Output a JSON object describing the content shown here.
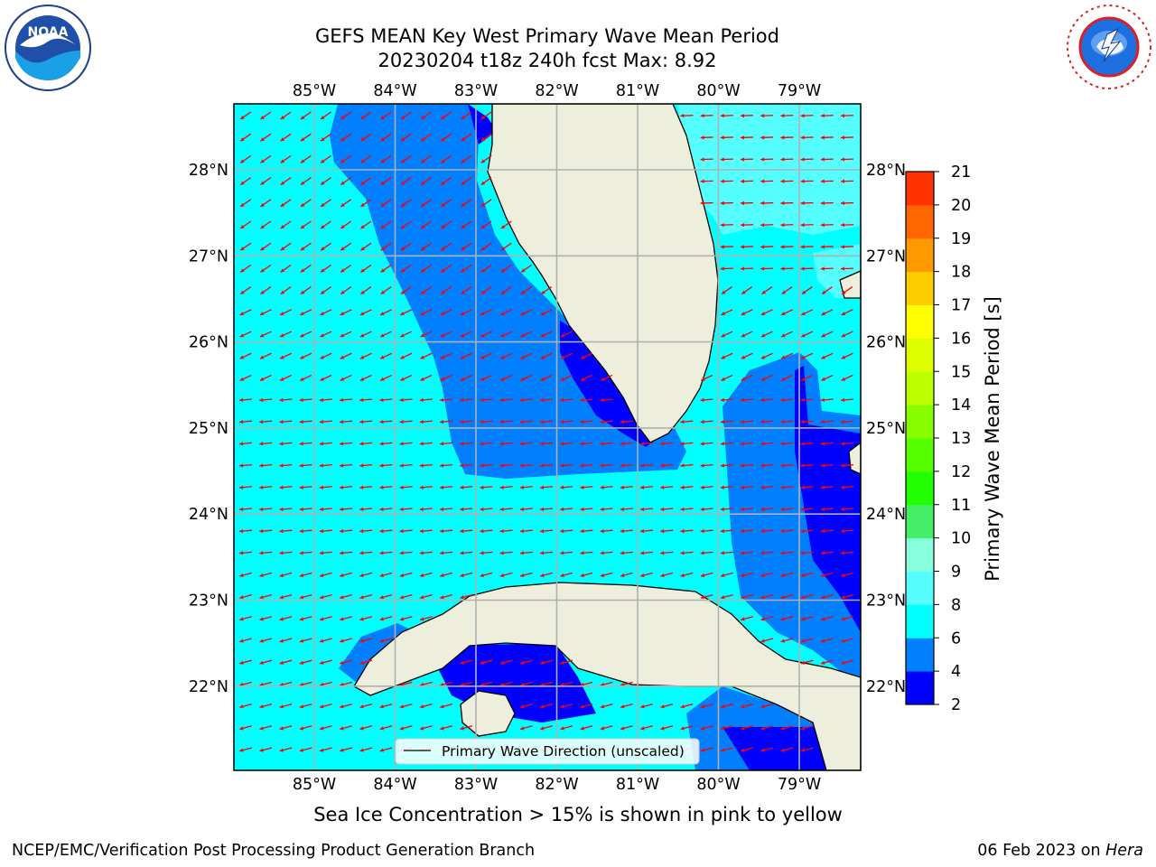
{
  "header": {
    "title_line1": "GEFS MEAN Key West Primary Wave Mean Period",
    "title_line2": "20230204 t18z 240h fcst   Max: 8.92"
  },
  "logos": {
    "left": {
      "name": "NOAA",
      "text": "NOAA"
    },
    "right": {
      "name": "NATIONAL WEATHER SERVICE"
    }
  },
  "map": {
    "lon_labels": [
      "85°W",
      "84°W",
      "83°W",
      "82°W",
      "81°W",
      "80°W",
      "79°W"
    ],
    "lat_labels": [
      "28°N",
      "27°N",
      "26°N",
      "25°N",
      "24°N",
      "23°N",
      "22°N"
    ],
    "legend_label": "Primary Wave Direction (unscaled)",
    "colors": {
      "ocean_base": "#00ffff",
      "band_6_8": "#00f4ff",
      "band_4_6": "#007fff",
      "band_2_4": "#0000ff",
      "band_8_9": "#55ffff",
      "land": "#eeeedd",
      "arrow": "#ff0000",
      "grid": "#b0b0b0"
    }
  },
  "colorbar": {
    "label": "Primary Wave Mean Period [s]",
    "ticks": [
      "2",
      "4",
      "6",
      "8",
      "9",
      "10",
      "11",
      "12",
      "13",
      "14",
      "15",
      "16",
      "17",
      "18",
      "19",
      "20",
      "21"
    ],
    "colors": [
      "#0000ff",
      "#007fff",
      "#00ffff",
      "#55ffff",
      "#88ffdd",
      "#44ee66",
      "#22ff00",
      "#55ff00",
      "#88ff00",
      "#bbff00",
      "#ddff00",
      "#ffff00",
      "#ffcc00",
      "#ff9900",
      "#ff6600",
      "#ff3300",
      "#ff0000"
    ]
  },
  "footer": {
    "subtitle": "Sea Ice Concentration > 15% is shown in pink to yellow",
    "left": "NCEP/EMC/Verification Post Processing Product Generation Branch",
    "right_date": "06 Feb 2023 on ",
    "right_host": "Hera"
  }
}
